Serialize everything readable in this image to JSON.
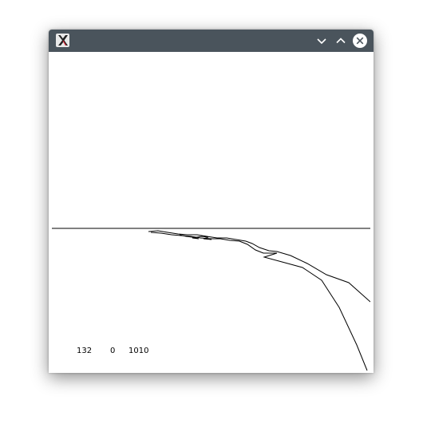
{
  "window": {
    "app_icon": "x-window-icon",
    "controls": {
      "minimize_icon": "chevron-down-icon",
      "maximize_icon": "chevron-up-icon",
      "close_icon": "close-icon"
    },
    "colors": {
      "titlebar": "#4a545c",
      "close_button": "#ffffff",
      "canvas": "#ffffff",
      "lines": "#000000"
    }
  },
  "readout": {
    "value1": "132",
    "value2": "0",
    "value3": "1010"
  }
}
